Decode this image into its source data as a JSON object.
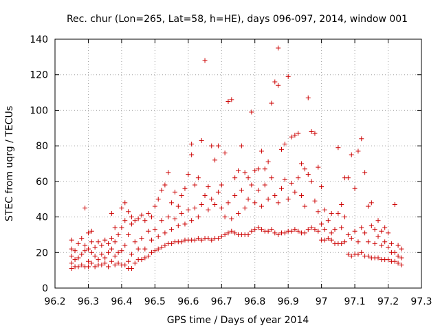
{
  "chart_data": {
    "type": "scatter",
    "title": "Rec. chur (Lon=265, Lat=58, h=HE), days 096-097, 2014, window 001",
    "xlabel": "GPS time / Days of year 2014",
    "ylabel": "STEC from uqrg / TECUs",
    "xlim": [
      96.2,
      97.3
    ],
    "ylim": [
      0,
      140
    ],
    "xticks": [
      "96.2",
      "96.3",
      "96.4",
      "96.5",
      "96.6",
      "96.7",
      "96.8",
      "96.9",
      "97",
      "97.1",
      "97.2",
      "97.3"
    ],
    "yticks": [
      "0",
      "20",
      "40",
      "60",
      "80",
      "100",
      "120",
      "140"
    ],
    "grid": true,
    "marker": "+",
    "color": "#cc0000",
    "points": [
      [
        96.25,
        11
      ],
      [
        96.25,
        14
      ],
      [
        96.25,
        18
      ],
      [
        96.25,
        22
      ],
      [
        96.25,
        27
      ],
      [
        96.26,
        12
      ],
      [
        96.26,
        16
      ],
      [
        96.26,
        21
      ],
      [
        96.27,
        12
      ],
      [
        96.27,
        17
      ],
      [
        96.27,
        25
      ],
      [
        96.28,
        13
      ],
      [
        96.28,
        19
      ],
      [
        96.28,
        28
      ],
      [
        96.29,
        12
      ],
      [
        96.29,
        21
      ],
      [
        96.29,
        24
      ],
      [
        96.29,
        45
      ],
      [
        96.3,
        12
      ],
      [
        96.3,
        15
      ],
      [
        96.3,
        22
      ],
      [
        96.3,
        31
      ],
      [
        96.31,
        14
      ],
      [
        96.31,
        20
      ],
      [
        96.31,
        26
      ],
      [
        96.31,
        32
      ],
      [
        96.32,
        12
      ],
      [
        96.32,
        18
      ],
      [
        96.32,
        23
      ],
      [
        96.33,
        13
      ],
      [
        96.33,
        16
      ],
      [
        96.33,
        26
      ],
      [
        96.34,
        13
      ],
      [
        96.34,
        19
      ],
      [
        96.34,
        24
      ],
      [
        96.35,
        14
      ],
      [
        96.35,
        17
      ],
      [
        96.35,
        27
      ],
      [
        96.36,
        12
      ],
      [
        96.36,
        20
      ],
      [
        96.36,
        25
      ],
      [
        96.37,
        15
      ],
      [
        96.37,
        22
      ],
      [
        96.37,
        28
      ],
      [
        96.37,
        42
      ],
      [
        96.38,
        13
      ],
      [
        96.38,
        18
      ],
      [
        96.38,
        26
      ],
      [
        96.38,
        34
      ],
      [
        96.39,
        14
      ],
      [
        96.39,
        20
      ],
      [
        96.39,
        30
      ],
      [
        96.4,
        13
      ],
      [
        96.4,
        21
      ],
      [
        96.4,
        34
      ],
      [
        96.4,
        45
      ],
      [
        96.41,
        13
      ],
      [
        96.41,
        24
      ],
      [
        96.41,
        38
      ],
      [
        96.41,
        48
      ],
      [
        96.42,
        11
      ],
      [
        96.42,
        15
      ],
      [
        96.42,
        30
      ],
      [
        96.42,
        43
      ],
      [
        96.43,
        11
      ],
      [
        96.43,
        19
      ],
      [
        96.43,
        36
      ],
      [
        96.43,
        40
      ],
      [
        96.44,
        14
      ],
      [
        96.44,
        26
      ],
      [
        96.44,
        38
      ],
      [
        96.45,
        16
      ],
      [
        96.45,
        22
      ],
      [
        96.45,
        39
      ],
      [
        96.46,
        16
      ],
      [
        96.46,
        28
      ],
      [
        96.46,
        41
      ],
      [
        96.47,
        17
      ],
      [
        96.47,
        22
      ],
      [
        96.47,
        38
      ],
      [
        96.48,
        18
      ],
      [
        96.48,
        32
      ],
      [
        96.48,
        42
      ],
      [
        96.49,
        20
      ],
      [
        96.49,
        27
      ],
      [
        96.49,
        40
      ],
      [
        96.5,
        21
      ],
      [
        96.5,
        33
      ],
      [
        96.5,
        46
      ],
      [
        96.51,
        22
      ],
      [
        96.51,
        29
      ],
      [
        96.51,
        50
      ],
      [
        96.52,
        23
      ],
      [
        96.52,
        38
      ],
      [
        96.52,
        55
      ],
      [
        96.53,
        24
      ],
      [
        96.53,
        31
      ],
      [
        96.53,
        58
      ],
      [
        96.54,
        25
      ],
      [
        96.54,
        40
      ],
      [
        96.54,
        65
      ],
      [
        96.55,
        25
      ],
      [
        96.55,
        33
      ],
      [
        96.55,
        48
      ],
      [
        96.56,
        26
      ],
      [
        96.56,
        39
      ],
      [
        96.56,
        54
      ],
      [
        96.57,
        26
      ],
      [
        96.57,
        35
      ],
      [
        96.57,
        46
      ],
      [
        96.58,
        26
      ],
      [
        96.58,
        42
      ],
      [
        96.58,
        52
      ],
      [
        96.59,
        27
      ],
      [
        96.59,
        36
      ],
      [
        96.59,
        56
      ],
      [
        96.6,
        27
      ],
      [
        96.6,
        44
      ],
      [
        96.6,
        64
      ],
      [
        96.61,
        27
      ],
      [
        96.61,
        38
      ],
      [
        96.61,
        75
      ],
      [
        96.61,
        81
      ],
      [
        96.62,
        27
      ],
      [
        96.62,
        45
      ],
      [
        96.62,
        58
      ],
      [
        96.63,
        28
      ],
      [
        96.63,
        40
      ],
      [
        96.63,
        62
      ],
      [
        96.64,
        27
      ],
      [
        96.64,
        47
      ],
      [
        96.64,
        83
      ],
      [
        96.65,
        28
      ],
      [
        96.65,
        52
      ],
      [
        96.65,
        128
      ],
      [
        96.66,
        28
      ],
      [
        96.66,
        44
      ],
      [
        96.66,
        57
      ],
      [
        96.67,
        27
      ],
      [
        96.67,
        50
      ],
      [
        96.67,
        80
      ],
      [
        96.68,
        28
      ],
      [
        96.68,
        47
      ],
      [
        96.68,
        72
      ],
      [
        96.69,
        28
      ],
      [
        96.69,
        54
      ],
      [
        96.69,
        80
      ],
      [
        96.7,
        29
      ],
      [
        96.7,
        45
      ],
      [
        96.7,
        58
      ],
      [
        96.71,
        30
      ],
      [
        96.71,
        40
      ],
      [
        96.71,
        76
      ],
      [
        96.72,
        31
      ],
      [
        96.72,
        48
      ],
      [
        96.72,
        105
      ],
      [
        96.73,
        32
      ],
      [
        96.73,
        39
      ],
      [
        96.73,
        106
      ],
      [
        96.74,
        31
      ],
      [
        96.74,
        52
      ],
      [
        96.74,
        62
      ],
      [
        96.75,
        30
      ],
      [
        96.75,
        42
      ],
      [
        96.75,
        66
      ],
      [
        96.76,
        30
      ],
      [
        96.76,
        55
      ],
      [
        96.76,
        80
      ],
      [
        96.77,
        30
      ],
      [
        96.77,
        45
      ],
      [
        96.77,
        65
      ],
      [
        96.78,
        30
      ],
      [
        96.78,
        50
      ],
      [
        96.78,
        62
      ],
      [
        96.79,
        32
      ],
      [
        96.79,
        58
      ],
      [
        96.79,
        99
      ],
      [
        96.8,
        33
      ],
      [
        96.8,
        48
      ],
      [
        96.8,
        66
      ],
      [
        96.81,
        34
      ],
      [
        96.81,
        55
      ],
      [
        96.81,
        67
      ],
      [
        96.82,
        33
      ],
      [
        96.82,
        46
      ],
      [
        96.82,
        77
      ],
      [
        96.83,
        32
      ],
      [
        96.83,
        58
      ],
      [
        96.83,
        67
      ],
      [
        96.84,
        32
      ],
      [
        96.84,
        50
      ],
      [
        96.84,
        71
      ],
      [
        96.85,
        33
      ],
      [
        96.85,
        62
      ],
      [
        96.85,
        104
      ],
      [
        96.86,
        31
      ],
      [
        96.86,
        52
      ],
      [
        96.86,
        116
      ],
      [
        96.87,
        30
      ],
      [
        96.87,
        48
      ],
      [
        96.87,
        114
      ],
      [
        96.87,
        135
      ],
      [
        96.88,
        31
      ],
      [
        96.88,
        56
      ],
      [
        96.88,
        78
      ],
      [
        96.89,
        31
      ],
      [
        96.89,
        61
      ],
      [
        96.89,
        81
      ],
      [
        96.9,
        32
      ],
      [
        96.9,
        50
      ],
      [
        96.9,
        119
      ],
      [
        96.91,
        32
      ],
      [
        96.91,
        59
      ],
      [
        96.91,
        85
      ],
      [
        96.92,
        33
      ],
      [
        96.92,
        54
      ],
      [
        96.92,
        86
      ],
      [
        96.93,
        32
      ],
      [
        96.93,
        62
      ],
      [
        96.93,
        87
      ],
      [
        96.94,
        31
      ],
      [
        96.94,
        52
      ],
      [
        96.94,
        70
      ],
      [
        96.95,
        31
      ],
      [
        96.95,
        46
      ],
      [
        96.95,
        67
      ],
      [
        96.96,
        33
      ],
      [
        96.96,
        64
      ],
      [
        96.96,
        107
      ],
      [
        96.97,
        34
      ],
      [
        96.97,
        60
      ],
      [
        96.97,
        88
      ],
      [
        96.98,
        33
      ],
      [
        96.98,
        49
      ],
      [
        96.98,
        87
      ],
      [
        96.99,
        32
      ],
      [
        96.99,
        43
      ],
      [
        96.99,
        68
      ],
      [
        97.0,
        27
      ],
      [
        97.0,
        36
      ],
      [
        97.0,
        57
      ],
      [
        97.01,
        27
      ],
      [
        97.01,
        33
      ],
      [
        97.01,
        44
      ],
      [
        97.02,
        28
      ],
      [
        97.02,
        38
      ],
      [
        97.03,
        27
      ],
      [
        97.03,
        31
      ],
      [
        97.03,
        42
      ],
      [
        97.04,
        25
      ],
      [
        97.04,
        33
      ],
      [
        97.05,
        25
      ],
      [
        97.05,
        42
      ],
      [
        97.05,
        79
      ],
      [
        97.06,
        25
      ],
      [
        97.06,
        34
      ],
      [
        97.06,
        47
      ],
      [
        97.07,
        26
      ],
      [
        97.07,
        40
      ],
      [
        97.07,
        62
      ],
      [
        97.08,
        19
      ],
      [
        97.08,
        30
      ],
      [
        97.08,
        62
      ],
      [
        97.09,
        18
      ],
      [
        97.09,
        28
      ],
      [
        97.09,
        75
      ],
      [
        97.1,
        19
      ],
      [
        97.1,
        32
      ],
      [
        97.1,
        56
      ],
      [
        97.11,
        19
      ],
      [
        97.11,
        26
      ],
      [
        97.11,
        77
      ],
      [
        97.12,
        20
      ],
      [
        97.12,
        34
      ],
      [
        97.12,
        84
      ],
      [
        97.13,
        18
      ],
      [
        97.13,
        31
      ],
      [
        97.13,
        65
      ],
      [
        97.14,
        18
      ],
      [
        97.14,
        26
      ],
      [
        97.14,
        46
      ],
      [
        97.15,
        17
      ],
      [
        97.15,
        35
      ],
      [
        97.15,
        48
      ],
      [
        97.16,
        17
      ],
      [
        97.16,
        25
      ],
      [
        97.16,
        33
      ],
      [
        97.17,
        17
      ],
      [
        97.17,
        29
      ],
      [
        97.17,
        38
      ],
      [
        97.18,
        16
      ],
      [
        97.18,
        24
      ],
      [
        97.18,
        32
      ],
      [
        97.19,
        16
      ],
      [
        97.19,
        26
      ],
      [
        97.19,
        34
      ],
      [
        97.2,
        16
      ],
      [
        97.2,
        23
      ],
      [
        97.2,
        31
      ],
      [
        97.21,
        15
      ],
      [
        97.21,
        20
      ],
      [
        97.21,
        25
      ],
      [
        97.22,
        15
      ],
      [
        97.22,
        20
      ],
      [
        97.22,
        47
      ],
      [
        97.23,
        14
      ],
      [
        97.23,
        18
      ],
      [
        97.23,
        24
      ],
      [
        97.24,
        13
      ],
      [
        97.24,
        17
      ],
      [
        97.24,
        22
      ]
    ]
  }
}
